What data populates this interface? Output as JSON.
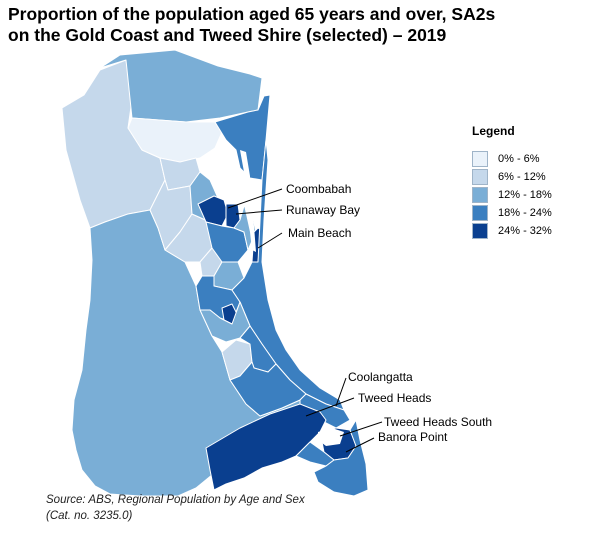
{
  "title": {
    "line1": "Proportion of the population aged 65 years and over, SA2s",
    "line2": "on the Gold Coast and Tweed Shire (selected) – 2019"
  },
  "legend": {
    "title": "Legend",
    "items": [
      {
        "label": "0% - 6%",
        "color": "#eaf2fa"
      },
      {
        "label": "6% - 12%",
        "color": "#c5d8eb"
      },
      {
        "label": "12% - 18%",
        "color": "#7aaed6"
      },
      {
        "label": "18% - 24%",
        "color": "#3b7fc0"
      },
      {
        "label": "24% - 32%",
        "color": "#0a3f8f"
      }
    ]
  },
  "places": {
    "coombabah": "Coombabah",
    "runaway_bay": "Runaway Bay",
    "main_beach": "Main Beach",
    "coolangatta": "Coolangatta",
    "tweed_heads": "Tweed Heads",
    "tweed_heads_south": "Tweed Heads South",
    "banora_point": "Banora Point"
  },
  "source": {
    "line1": "Source:  ABS, Regional Population by Age and Sex",
    "line2": "(Cat. no. 3235.0)"
  }
}
